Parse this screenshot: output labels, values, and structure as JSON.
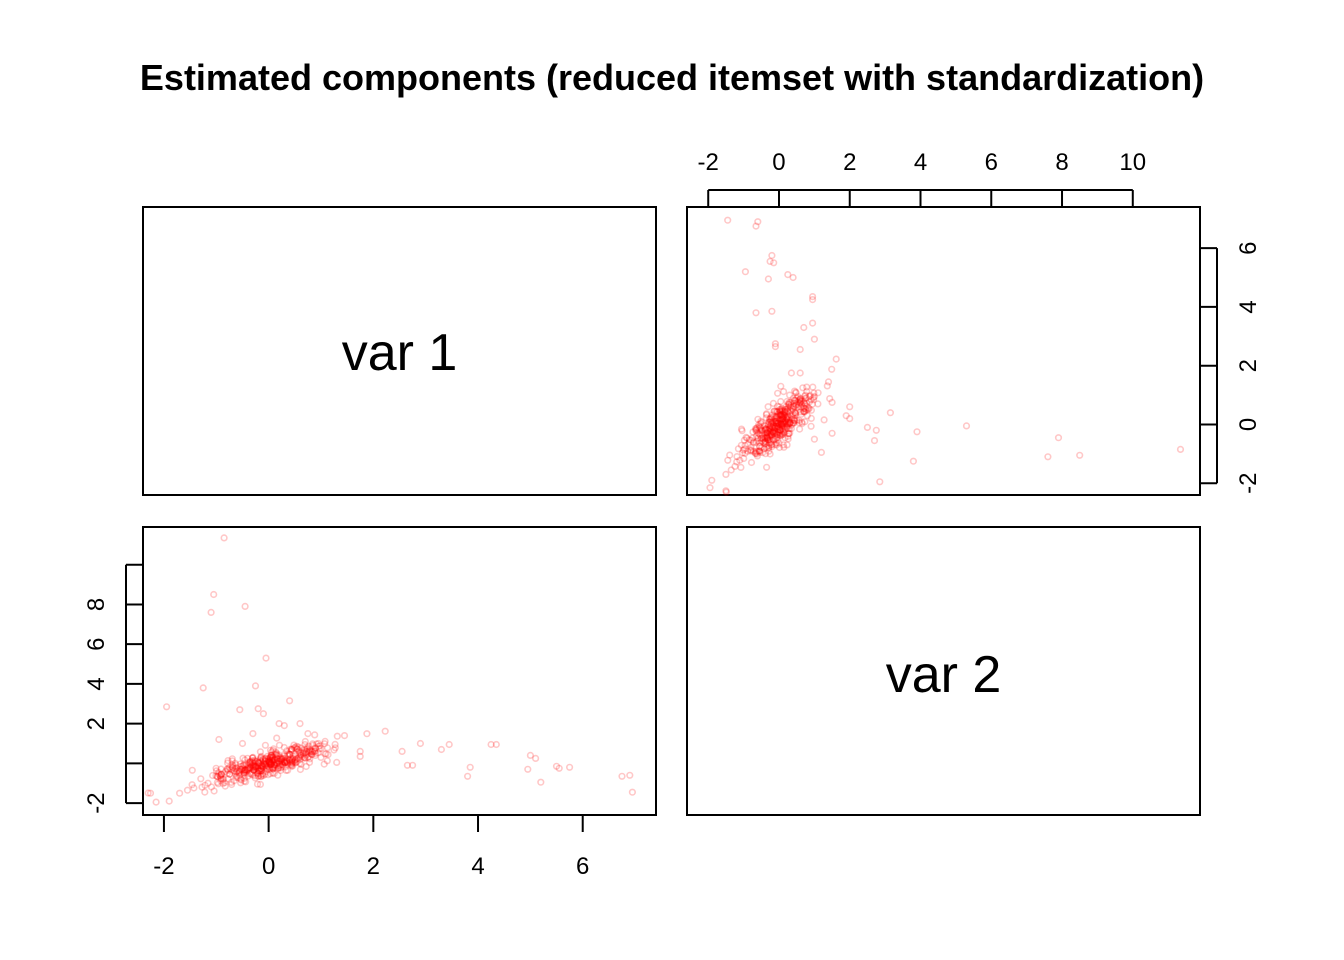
{
  "chart_data": {
    "type": "scatter",
    "title": "Estimated components (reduced itemset with standardization)",
    "variables": [
      "var 1",
      "var 2"
    ],
    "point_color": "#ff0000",
    "point_opacity": 0.22,
    "axes": {
      "var1": {
        "lim": [
          -2.4,
          7.4
        ],
        "ticks": [
          -2,
          0,
          2,
          4,
          6
        ],
        "tick_labels": [
          "-2",
          "0",
          "2",
          "4",
          "6"
        ]
      },
      "var2": {
        "lim": [
          -2.6,
          11.9
        ],
        "ticks": [
          -2,
          0,
          2,
          4,
          6,
          8,
          10
        ],
        "tick_labels": [
          "-2",
          "0",
          "2",
          "4",
          "6",
          "8",
          "10"
        ],
        "side_ticks": [
          -2,
          0,
          2,
          4,
          6
        ],
        "side_tick_labels": [
          "-2",
          "0",
          "2",
          "4",
          "6"
        ],
        "left_ticks": [
          -2,
          0,
          2,
          4,
          6,
          8,
          10
        ],
        "left_tick_labels": [
          "-2",
          "",
          "2",
          "4",
          "6",
          "8",
          ""
        ]
      }
    },
    "points": [
      [
        6.95,
        -1.45
      ],
      [
        6.9,
        -0.6
      ],
      [
        6.75,
        -0.65
      ],
      [
        5.75,
        -0.2
      ],
      [
        5.55,
        -0.25
      ],
      [
        5.5,
        -0.15
      ],
      [
        5.2,
        -0.95
      ],
      [
        5.1,
        0.25
      ],
      [
        5.0,
        0.4
      ],
      [
        4.95,
        -0.3
      ],
      [
        4.35,
        0.95
      ],
      [
        4.25,
        0.95
      ],
      [
        3.85,
        -0.2
      ],
      [
        3.8,
        -0.65
      ],
      [
        3.45,
        0.95
      ],
      [
        3.3,
        0.7
      ],
      [
        2.9,
        1.0
      ],
      [
        2.75,
        -0.1
      ],
      [
        2.65,
        -0.1
      ],
      [
        2.55,
        0.6
      ],
      [
        1.75,
        0.6
      ],
      [
        1.75,
        0.35
      ],
      [
        1.3,
        0.05
      ],
      [
        1.45,
        1.4
      ],
      [
        1.0,
        0.75
      ],
      [
        0.95,
        1.0
      ],
      [
        0.8,
        0.6
      ],
      [
        0.75,
        1.5
      ],
      [
        0.7,
        1.1
      ],
      [
        0.6,
        2.0
      ],
      [
        0.45,
        0.7
      ],
      [
        0.4,
        3.15
      ],
      [
        0.3,
        1.9
      ],
      [
        0.2,
        2.0
      ],
      [
        0.15,
        0.5
      ],
      [
        -0.05,
        5.3
      ],
      [
        -0.1,
        2.5
      ],
      [
        -0.2,
        2.75
      ],
      [
        -0.25,
        3.9
      ],
      [
        -0.45,
        7.9
      ],
      [
        -0.3,
        1.5
      ],
      [
        -0.5,
        1.0
      ],
      [
        -0.55,
        2.7
      ],
      [
        -1.05,
        8.5
      ],
      [
        -1.1,
        7.6
      ],
      [
        -0.85,
        11.35
      ],
      [
        -0.95,
        1.2
      ],
      [
        -1.25,
        3.8
      ],
      [
        -1.95,
        2.85
      ],
      [
        -2.15,
        -1.95
      ],
      [
        -1.9,
        -1.9
      ],
      [
        -1.7,
        -1.5
      ],
      [
        -1.55,
        -1.35
      ],
      [
        -0.75,
        -0.55
      ],
      [
        -0.6,
        -0.4
      ],
      [
        -0.15,
        0.3
      ],
      [
        0.3,
        0.8
      ],
      [
        0.6,
        0.2
      ],
      [
        0.9,
        0.5
      ],
      [
        1.0,
        0.3
      ]
    ],
    "cluster": {
      "n": 440,
      "center": [
        0.0,
        0.0
      ],
      "seed": 7
    }
  }
}
